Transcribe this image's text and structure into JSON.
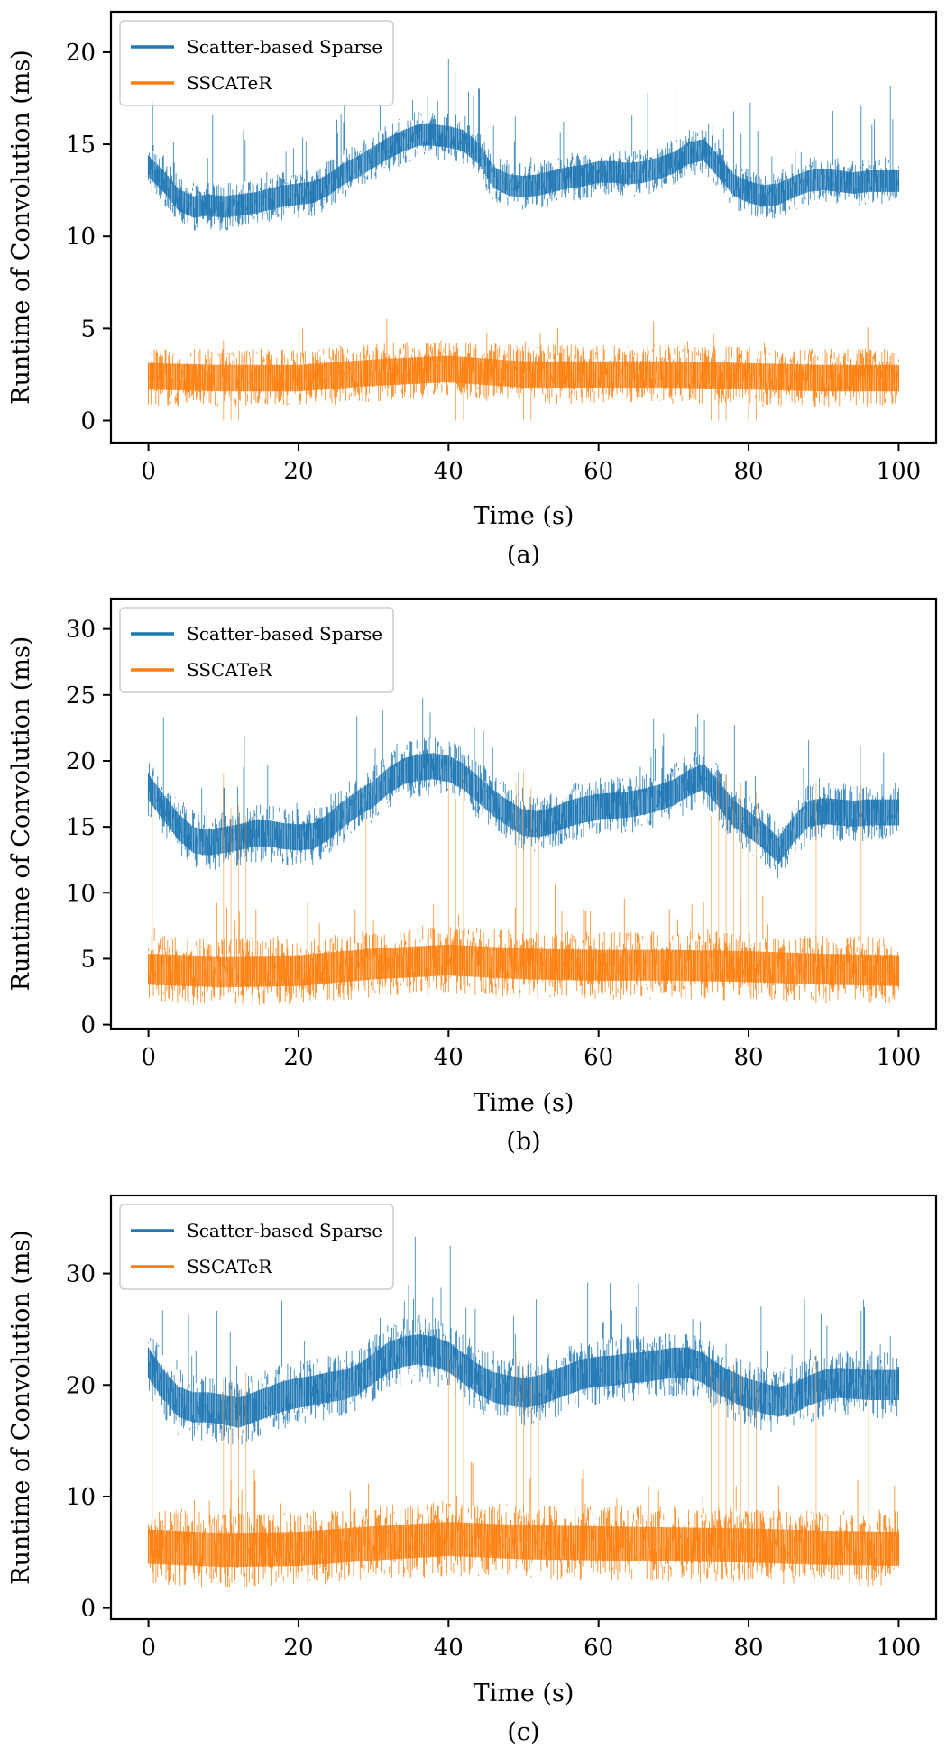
{
  "colors": {
    "scatter": "#1f77b4",
    "sscater": "#ff7f0e"
  },
  "chart_data": [
    {
      "type": "line",
      "caption": "(a)",
      "xlabel": "Time (s)",
      "ylabel": "Runtime of Convolution (ms)",
      "xlim": [
        -5,
        105
      ],
      "ylim": [
        -1.2,
        22.2
      ],
      "xticks": [
        0,
        20,
        40,
        60,
        80,
        100
      ],
      "yticks": [
        0,
        5,
        10,
        15,
        20
      ],
      "legend": {
        "position": "top-left",
        "entries": [
          "Scatter-based Sparse",
          "SSCATeR"
        ]
      },
      "series": [
        {
          "name": "Scatter-based Sparse",
          "x": [
            0,
            2,
            4,
            6,
            8,
            10,
            12,
            14,
            16,
            18,
            20,
            22,
            24,
            26,
            28,
            30,
            32,
            34,
            36,
            38,
            40,
            42,
            44,
            46,
            48,
            50,
            52,
            54,
            56,
            58,
            60,
            62,
            64,
            66,
            68,
            70,
            72,
            74,
            76,
            78,
            80,
            82,
            84,
            86,
            88,
            90,
            92,
            94,
            96,
            98,
            100
          ],
          "values": [
            13.8,
            13,
            12,
            11.6,
            11.7,
            11.6,
            11.7,
            11.8,
            12,
            12.2,
            12.3,
            12.4,
            12.8,
            13.4,
            13.8,
            14.3,
            14.8,
            15.2,
            15.5,
            15.5,
            15.4,
            15.2,
            14.5,
            13.2,
            12.8,
            12.7,
            12.8,
            13,
            13.2,
            13.3,
            13.5,
            13.5,
            13.4,
            13.5,
            13.7,
            14,
            14.5,
            14.7,
            13.8,
            12.8,
            12.4,
            12.2,
            12.3,
            12.7,
            13,
            13.1,
            13,
            12.9,
            13,
            13,
            13
          ],
          "spread": 1.3,
          "spikes": 4
        },
        {
          "name": "SSCATeR",
          "x": [
            0,
            10,
            20,
            30,
            40,
            50,
            60,
            70,
            80,
            90,
            100
          ],
          "values": [
            2.4,
            2.3,
            2.3,
            2.6,
            2.8,
            2.5,
            2.5,
            2.5,
            2.4,
            2.3,
            2.3
          ],
          "spread": 1.6,
          "spikes": 1.6,
          "dropouts": [
            10,
            11,
            12,
            41,
            42,
            50,
            51,
            75,
            76,
            77,
            80,
            81
          ]
        }
      ]
    },
    {
      "type": "line",
      "caption": "(b)",
      "xlabel": "Time (s)",
      "ylabel": "Runtime of Convolution (ms)",
      "xlim": [
        -5,
        105
      ],
      "ylim": [
        -0.3,
        32.3
      ],
      "xticks": [
        0,
        20,
        40,
        60,
        80,
        100
      ],
      "yticks": [
        0,
        5,
        10,
        15,
        20,
        25,
        30
      ],
      "legend": {
        "position": "top-left",
        "entries": [
          "Scatter-based Sparse",
          "SSCATeR"
        ]
      },
      "series": [
        {
          "name": "Scatter-based Sparse",
          "x": [
            0,
            2,
            4,
            6,
            8,
            10,
            12,
            14,
            16,
            18,
            20,
            22,
            24,
            26,
            28,
            30,
            32,
            34,
            36,
            38,
            40,
            42,
            44,
            46,
            48,
            50,
            52,
            54,
            56,
            58,
            60,
            62,
            64,
            66,
            68,
            70,
            72,
            74,
            76,
            78,
            80,
            82,
            84,
            86,
            88,
            90,
            92,
            94,
            96,
            98,
            100
          ],
          "values": [
            18,
            16.5,
            15,
            14,
            13.8,
            14,
            14.2,
            14.5,
            14.5,
            14.3,
            14.2,
            14.3,
            15,
            16,
            16.8,
            17.5,
            18.5,
            19.2,
            19.5,
            19.6,
            19.4,
            18.8,
            17.8,
            16.8,
            16,
            15.3,
            15.2,
            15.5,
            16,
            16.3,
            16.5,
            16.6,
            16.7,
            16.9,
            17.2,
            17.6,
            18.3,
            18.8,
            17.5,
            16,
            15.2,
            14.3,
            13.2,
            14.8,
            16,
            16.2,
            16.1,
            16,
            16.1,
            16.1,
            16.1
          ],
          "spread": 2.2,
          "spikes": 6
        },
        {
          "name": "SSCATeR",
          "x": [
            0,
            10,
            20,
            30,
            40,
            50,
            60,
            70,
            80,
            90,
            100
          ],
          "values": [
            4.2,
            4,
            4.1,
            4.6,
            4.9,
            4.6,
            4.5,
            4.5,
            4.4,
            4.2,
            4.1
          ],
          "spread": 2.6,
          "spikes": 4,
          "tallSpikes": [
            0.5,
            10,
            11,
            12,
            13,
            29,
            40,
            41,
            42,
            49,
            50,
            51,
            52,
            75,
            76,
            77,
            78,
            79,
            80,
            81,
            89,
            95
          ],
          "tallHeight": 15.5
        }
      ]
    },
    {
      "type": "line",
      "caption": "(c)",
      "xlabel": "Time (s)",
      "ylabel": "Runtime of Convolution (ms)",
      "xlim": [
        -5,
        105
      ],
      "ylim": [
        -1,
        37
      ],
      "xticks": [
        0,
        20,
        40,
        60,
        80,
        100
      ],
      "yticks": [
        0,
        10,
        20,
        30
      ],
      "legend": {
        "position": "top-left",
        "entries": [
          "Scatter-based Sparse",
          "SSCATeR"
        ]
      },
      "series": [
        {
          "name": "Scatter-based Sparse",
          "x": [
            0,
            2,
            4,
            6,
            8,
            10,
            12,
            14,
            16,
            18,
            20,
            22,
            24,
            26,
            28,
            30,
            32,
            34,
            36,
            38,
            40,
            42,
            44,
            46,
            48,
            50,
            52,
            54,
            56,
            58,
            60,
            62,
            64,
            66,
            68,
            70,
            72,
            74,
            76,
            78,
            80,
            82,
            84,
            86,
            88,
            90,
            92,
            94,
            96,
            98,
            100
          ],
          "values": [
            22,
            20,
            18.5,
            18,
            18,
            17.8,
            17.5,
            18,
            18.5,
            19,
            19.3,
            19.5,
            19.8,
            20,
            20.5,
            21.5,
            22.5,
            23,
            23.2,
            23,
            22.5,
            21.5,
            20.5,
            19.8,
            19.5,
            19.3,
            19.5,
            20,
            20.5,
            21,
            21.2,
            21.3,
            21.5,
            21.6,
            21.8,
            22,
            22,
            21.5,
            20.5,
            19.8,
            19.2,
            18.8,
            18.5,
            18.8,
            19.5,
            20,
            20.2,
            20.1,
            20,
            20,
            20
          ],
          "spread": 3,
          "spikes": 8
        },
        {
          "name": "SSCATeR",
          "x": [
            0,
            10,
            20,
            30,
            40,
            50,
            60,
            70,
            80,
            90,
            100
          ],
          "values": [
            5.5,
            5.2,
            5.3,
            5.8,
            6.2,
            5.9,
            5.8,
            5.7,
            5.6,
            5.4,
            5.3
          ],
          "spread": 3.4,
          "spikes": 5,
          "tallSpikes": [
            0.5,
            10,
            11,
            12,
            13,
            40,
            41,
            42,
            49,
            50,
            51,
            52,
            75,
            76,
            77,
            78,
            79,
            80,
            81,
            89,
            96
          ],
          "tallHeight": 19
        }
      ]
    }
  ]
}
